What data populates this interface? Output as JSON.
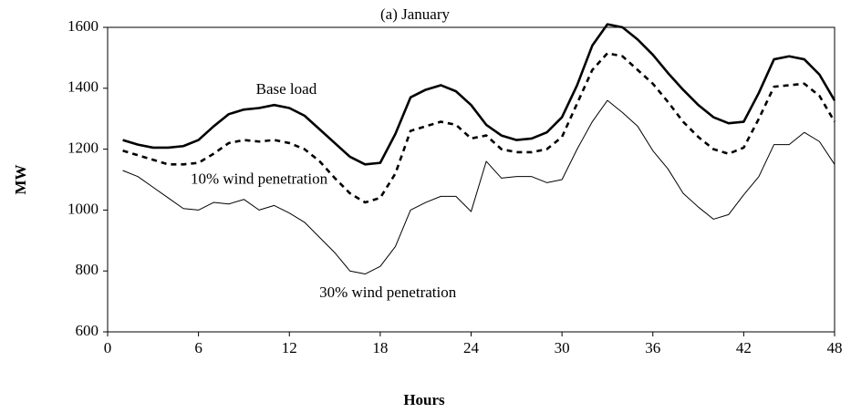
{
  "chart_data": {
    "type": "line",
    "title": "(a) January",
    "x_label": "Hours",
    "y_label": "MW",
    "x": [
      1,
      2,
      3,
      4,
      5,
      6,
      7,
      8,
      9,
      10,
      11,
      12,
      13,
      14,
      15,
      16,
      17,
      18,
      19,
      20,
      21,
      22,
      23,
      24,
      25,
      26,
      27,
      28,
      29,
      30,
      31,
      32,
      33,
      34,
      35,
      36,
      37,
      38,
      39,
      40,
      41,
      42,
      43,
      44,
      45,
      46,
      47,
      48
    ],
    "series": [
      {
        "name": "Base load",
        "color": "#000000",
        "line_style": "solid",
        "line_width": 2.6,
        "values": [
          1230,
          1215,
          1205,
          1205,
          1210,
          1230,
          1275,
          1315,
          1330,
          1335,
          1345,
          1335,
          1310,
          1265,
          1220,
          1175,
          1150,
          1155,
          1250,
          1370,
          1395,
          1410,
          1390,
          1345,
          1280,
          1245,
          1230,
          1235,
          1255,
          1305,
          1410,
          1540,
          1610,
          1600,
          1560,
          1510,
          1450,
          1395,
          1345,
          1305,
          1285,
          1290,
          1385,
          1495,
          1505,
          1495,
          1445,
          1360
        ]
      },
      {
        "name": "10% wind penetration",
        "color": "#000000",
        "line_style": "dashed",
        "line_width": 2.6,
        "values": [
          1195,
          1180,
          1165,
          1150,
          1150,
          1155,
          1185,
          1220,
          1230,
          1225,
          1230,
          1220,
          1200,
          1160,
          1105,
          1055,
          1025,
          1040,
          1120,
          1260,
          1275,
          1290,
          1280,
          1235,
          1245,
          1200,
          1190,
          1190,
          1200,
          1240,
          1350,
          1460,
          1515,
          1505,
          1460,
          1415,
          1355,
          1290,
          1240,
          1200,
          1185,
          1205,
          1300,
          1405,
          1410,
          1415,
          1375,
          1290
        ]
      },
      {
        "name": "30% wind penetration",
        "color": "#000000",
        "line_style": "solid",
        "line_width": 1,
        "values": [
          1130,
          1110,
          1075,
          1040,
          1005,
          1000,
          1025,
          1020,
          1035,
          1000,
          1015,
          990,
          960,
          910,
          860,
          800,
          790,
          815,
          880,
          1000,
          1025,
          1045,
          1045,
          995,
          1160,
          1105,
          1110,
          1110,
          1090,
          1100,
          1200,
          1290,
          1360,
          1320,
          1275,
          1195,
          1135,
          1055,
          1010,
          970,
          985,
          1050,
          1110,
          1215,
          1215,
          1255,
          1225,
          1150
        ]
      }
    ],
    "xlim": [
      0,
      48
    ],
    "xticks": [
      0,
      6,
      12,
      18,
      24,
      30,
      36,
      42,
      48
    ],
    "ylim": [
      600,
      1600
    ],
    "yticks": [
      600,
      800,
      1000,
      1200,
      1400,
      1600
    ],
    "grid": false
  }
}
